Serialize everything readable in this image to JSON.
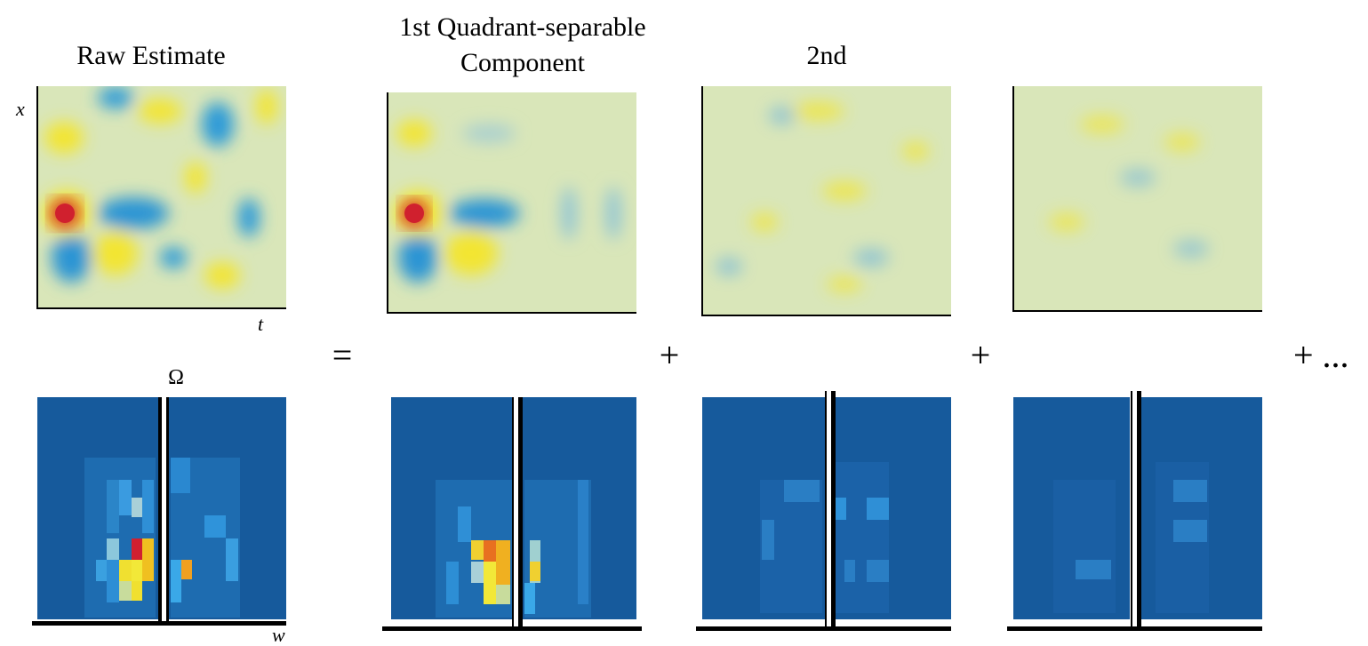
{
  "header": {
    "raw": "Raw  Estimate",
    "first_line1": "1st Quadrant-separable",
    "first_line2": "Component",
    "second": "2nd"
  },
  "axes": {
    "x": "x",
    "t": "t",
    "omega": "Ω",
    "w": "w"
  },
  "operators": {
    "equals": "=",
    "plus1": "+",
    "plus2": "+",
    "plus_more": "+ ..."
  }
}
